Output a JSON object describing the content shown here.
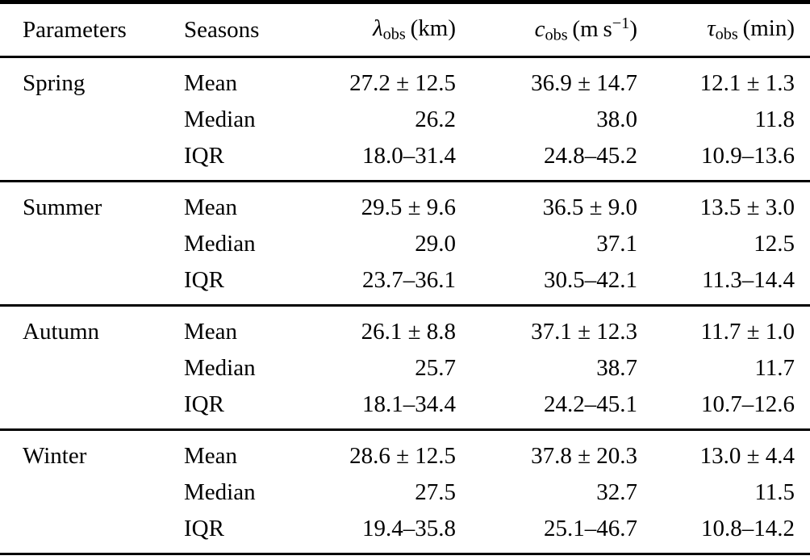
{
  "table": {
    "headers": {
      "parameters": "Parameters",
      "seasons": "Seasons",
      "lambda": {
        "sym": "λ",
        "sub": "obs",
        "unit": "(km)"
      },
      "c": {
        "sym": "c",
        "sub": "obs",
        "unit_pre": "(m s",
        "sup": "−1",
        "unit_post": ")"
      },
      "tau": {
        "sym": "τ",
        "sub": "obs",
        "unit": "(min)"
      }
    },
    "groups": [
      {
        "season": "Spring",
        "rows": [
          {
            "stat": "Mean",
            "lambda": "27.2 ± 12.5",
            "c": "36.9 ± 14.7",
            "tau": "12.1 ± 1.3"
          },
          {
            "stat": "Median",
            "lambda": "26.2",
            "c": "38.0",
            "tau": "11.8"
          },
          {
            "stat": "IQR",
            "lambda": "18.0–31.4",
            "c": "24.8–45.2",
            "tau": "10.9–13.6"
          }
        ]
      },
      {
        "season": "Summer",
        "rows": [
          {
            "stat": "Mean",
            "lambda": "29.5 ± 9.6",
            "c": "36.5 ± 9.0",
            "tau": "13.5 ± 3.0"
          },
          {
            "stat": "Median",
            "lambda": "29.0",
            "c": "37.1",
            "tau": "12.5"
          },
          {
            "stat": "IQR",
            "lambda": "23.7–36.1",
            "c": "30.5–42.1",
            "tau": "11.3–14.4"
          }
        ]
      },
      {
        "season": "Autumn",
        "rows": [
          {
            "stat": "Mean",
            "lambda": "26.1 ± 8.8",
            "c": "37.1 ± 12.3",
            "tau": "11.7 ± 1.0"
          },
          {
            "stat": "Median",
            "lambda": "25.7",
            "c": "38.7",
            "tau": "11.7"
          },
          {
            "stat": "IQR",
            "lambda": "18.1–34.4",
            "c": "24.2–45.1",
            "tau": "10.7–12.6"
          }
        ]
      },
      {
        "season": "Winter",
        "rows": [
          {
            "stat": "Mean",
            "lambda": "28.6 ± 12.5",
            "c": "37.8 ± 20.3",
            "tau": "13.0 ± 4.4"
          },
          {
            "stat": "Median",
            "lambda": "27.5",
            "c": "32.7",
            "tau": "11.5"
          },
          {
            "stat": "IQR",
            "lambda": "19.4–35.8",
            "c": "25.1–46.7",
            "tau": "10.8–14.2"
          }
        ]
      }
    ]
  }
}
